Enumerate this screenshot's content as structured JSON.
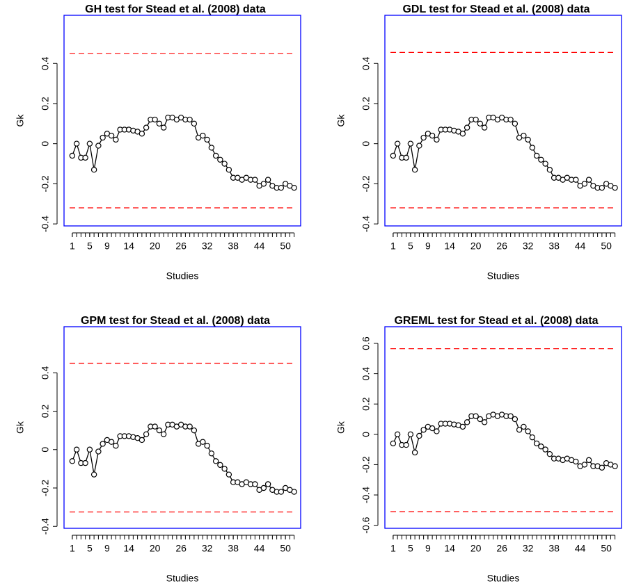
{
  "chart_data": [
    {
      "type": "line",
      "title": "GH test for Stead et al. (2008) data",
      "xlabel": "Studies",
      "ylabel": "Gk",
      "x": [
        1,
        2,
        3,
        4,
        5,
        6,
        7,
        8,
        9,
        10,
        11,
        12,
        13,
        14,
        15,
        16,
        17,
        18,
        19,
        20,
        21,
        22,
        23,
        24,
        25,
        26,
        27,
        28,
        29,
        30,
        31,
        32,
        33,
        34,
        35,
        36,
        37,
        38,
        39,
        40,
        41,
        42,
        43,
        44,
        45,
        46,
        47,
        48,
        49,
        50,
        51,
        52
      ],
      "values": [
        -0.06,
        0.0,
        -0.07,
        -0.07,
        0.0,
        -0.13,
        -0.01,
        0.03,
        0.05,
        0.04,
        0.02,
        0.07,
        0.07,
        0.07,
        0.065,
        0.06,
        0.05,
        0.08,
        0.12,
        0.12,
        0.1,
        0.08,
        0.13,
        0.13,
        0.12,
        0.13,
        0.12,
        0.12,
        0.1,
        0.03,
        0.04,
        0.02,
        -0.02,
        -0.06,
        -0.08,
        -0.1,
        -0.13,
        -0.17,
        -0.17,
        -0.18,
        -0.17,
        -0.18,
        -0.18,
        -0.21,
        -0.2,
        -0.18,
        -0.21,
        -0.22,
        -0.22,
        -0.2,
        -0.21,
        -0.22
      ],
      "color": "#000000",
      "hlines": [
        0.45,
        -0.32
      ],
      "hline_color": "#ff0000",
      "frame_color": "#0000ff",
      "xlim": [
        -0.9,
        53.5
      ],
      "xticks": [
        1,
        5,
        9,
        14,
        20,
        26,
        32,
        38,
        44,
        50
      ],
      "ylim": [
        -0.41,
        0.64
      ],
      "yticks": [
        -0.4,
        -0.2,
        0.0,
        0.2,
        0.4
      ]
    },
    {
      "type": "line",
      "title": "GDL test for Stead et al. (2008) data",
      "xlabel": "Studies",
      "ylabel": "Gk",
      "x": [
        1,
        2,
        3,
        4,
        5,
        6,
        7,
        8,
        9,
        10,
        11,
        12,
        13,
        14,
        15,
        16,
        17,
        18,
        19,
        20,
        21,
        22,
        23,
        24,
        25,
        26,
        27,
        28,
        29,
        30,
        31,
        32,
        33,
        34,
        35,
        36,
        37,
        38,
        39,
        40,
        41,
        42,
        43,
        44,
        45,
        46,
        47,
        48,
        49,
        50,
        51,
        52
      ],
      "values": [
        -0.06,
        0.0,
        -0.07,
        -0.07,
        0.0,
        -0.13,
        -0.01,
        0.03,
        0.05,
        0.04,
        0.02,
        0.07,
        0.07,
        0.07,
        0.065,
        0.06,
        0.05,
        0.08,
        0.12,
        0.12,
        0.1,
        0.08,
        0.13,
        0.13,
        0.12,
        0.13,
        0.12,
        0.12,
        0.1,
        0.03,
        0.04,
        0.02,
        -0.02,
        -0.06,
        -0.08,
        -0.1,
        -0.13,
        -0.17,
        -0.17,
        -0.18,
        -0.17,
        -0.18,
        -0.18,
        -0.21,
        -0.2,
        -0.18,
        -0.21,
        -0.22,
        -0.22,
        -0.2,
        -0.21,
        -0.22
      ],
      "color": "#000000",
      "hlines": [
        0.455,
        -0.32
      ],
      "hline_color": "#ff0000",
      "frame_color": "#0000ff",
      "xlim": [
        -0.9,
        53.5
      ],
      "xticks": [
        1,
        5,
        9,
        14,
        20,
        26,
        32,
        38,
        44,
        50
      ],
      "ylim": [
        -0.41,
        0.64
      ],
      "yticks": [
        -0.4,
        -0.2,
        0.0,
        0.2,
        0.4
      ]
    },
    {
      "type": "line",
      "title": "GPM test for Stead et al. (2008) data",
      "xlabel": "Studies",
      "ylabel": "Gk",
      "x": [
        1,
        2,
        3,
        4,
        5,
        6,
        7,
        8,
        9,
        10,
        11,
        12,
        13,
        14,
        15,
        16,
        17,
        18,
        19,
        20,
        21,
        22,
        23,
        24,
        25,
        26,
        27,
        28,
        29,
        30,
        31,
        32,
        33,
        34,
        35,
        36,
        37,
        38,
        39,
        40,
        41,
        42,
        43,
        44,
        45,
        46,
        47,
        48,
        49,
        50,
        51,
        52
      ],
      "values": [
        -0.06,
        0.0,
        -0.07,
        -0.07,
        0.0,
        -0.13,
        -0.01,
        0.03,
        0.05,
        0.04,
        0.02,
        0.07,
        0.07,
        0.07,
        0.065,
        0.06,
        0.05,
        0.08,
        0.12,
        0.12,
        0.1,
        0.08,
        0.13,
        0.13,
        0.12,
        0.13,
        0.12,
        0.12,
        0.1,
        0.03,
        0.04,
        0.02,
        -0.02,
        -0.06,
        -0.08,
        -0.1,
        -0.13,
        -0.17,
        -0.17,
        -0.18,
        -0.17,
        -0.18,
        -0.18,
        -0.21,
        -0.2,
        -0.18,
        -0.21,
        -0.22,
        -0.22,
        -0.2,
        -0.21,
        -0.22
      ],
      "color": "#000000",
      "hlines": [
        0.45,
        -0.325
      ],
      "hline_color": "#ff0000",
      "frame_color": "#0000ff",
      "xlim": [
        -0.9,
        53.5
      ],
      "xticks": [
        1,
        5,
        9,
        14,
        20,
        26,
        32,
        38,
        44,
        50
      ],
      "ylim": [
        -0.41,
        0.64
      ],
      "yticks": [
        -0.4,
        -0.2,
        0.0,
        0.2,
        0.4
      ]
    },
    {
      "type": "line",
      "title": "GREML test for Stead et al. (2008) data",
      "xlabel": "Studies",
      "ylabel": "Gk",
      "x": [
        1,
        2,
        3,
        4,
        5,
        6,
        7,
        8,
        9,
        10,
        11,
        12,
        13,
        14,
        15,
        16,
        17,
        18,
        19,
        20,
        21,
        22,
        23,
        24,
        25,
        26,
        27,
        28,
        29,
        30,
        31,
        32,
        33,
        34,
        35,
        36,
        37,
        38,
        39,
        40,
        41,
        42,
        43,
        44,
        45,
        46,
        47,
        48,
        49,
        50,
        51,
        52
      ],
      "values": [
        -0.06,
        0.0,
        -0.07,
        -0.07,
        0.0,
        -0.12,
        -0.01,
        0.03,
        0.05,
        0.04,
        0.02,
        0.07,
        0.07,
        0.07,
        0.065,
        0.06,
        0.05,
        0.08,
        0.12,
        0.12,
        0.1,
        0.08,
        0.12,
        0.13,
        0.12,
        0.13,
        0.12,
        0.12,
        0.1,
        0.03,
        0.05,
        0.02,
        -0.02,
        -0.06,
        -0.08,
        -0.1,
        -0.13,
        -0.16,
        -0.16,
        -0.17,
        -0.16,
        -0.17,
        -0.18,
        -0.21,
        -0.2,
        -0.17,
        -0.21,
        -0.21,
        -0.22,
        -0.19,
        -0.2,
        -0.21
      ],
      "color": "#000000",
      "hlines": [
        0.565,
        -0.51
      ],
      "hline_color": "#ff0000",
      "frame_color": "#0000ff",
      "xlim": [
        -0.9,
        53.5
      ],
      "xticks": [
        1,
        5,
        9,
        14,
        20,
        26,
        32,
        38,
        44,
        50
      ],
      "ylim": [
        -0.62,
        0.71
      ],
      "yticks": [
        -0.6,
        -0.4,
        -0.2,
        0.0,
        0.2,
        0.4,
        0.6
      ]
    }
  ]
}
